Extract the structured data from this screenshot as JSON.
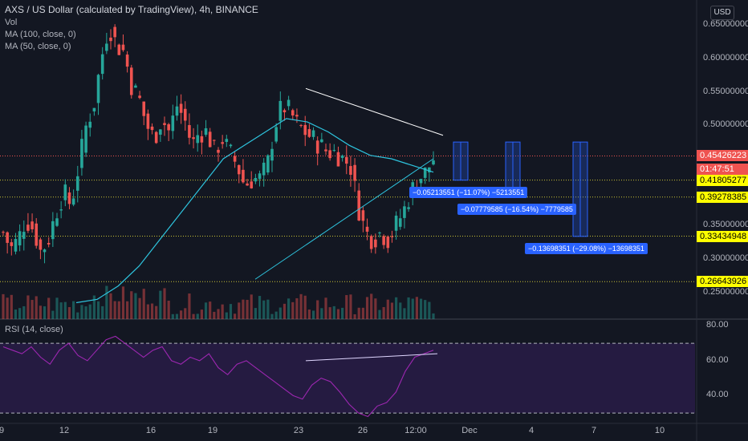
{
  "header": {
    "symbol_title": "AXS / US Dollar (calculated by TradingView), 4h, BINANCE",
    "studies": [
      "Vol",
      "MA (100, close, 0)",
      "MA (50, close, 0)"
    ],
    "currency_button": "USD"
  },
  "rsi_label": "RSI (14, close)",
  "colors": {
    "background": "#131722",
    "up_candle": "#26a69a",
    "down_candle": "#ef5350",
    "ma_line": "#2ec4de",
    "rsi_line": "#9c27b0",
    "rsi_band": "#2b1d4a",
    "measure_box": "#2962ff",
    "level_line": "#c9c234",
    "trendline": "#ffffff"
  },
  "price_axis": {
    "ticks": [
      "0.65000000",
      "0.60000000",
      "0.55000000",
      "0.50000000",
      "0.35000000",
      "0.30000000",
      "0.25000000"
    ]
  },
  "price_tags": [
    {
      "label": "0.45426223",
      "value": 0.45426223,
      "bg": "#ef5350",
      "fg": "#ffffff"
    },
    {
      "label": "01:47:51",
      "value": 0.4343,
      "bg": "#ef5350",
      "fg": "#ffffff"
    },
    {
      "label": "0.41805277",
      "value": 0.41805277,
      "bg": "#ffff00",
      "fg": "#000000"
    },
    {
      "label": "0.39278385",
      "value": 0.39278385,
      "bg": "#ffff00",
      "fg": "#000000"
    },
    {
      "label": "0.33434948",
      "value": 0.33434948,
      "bg": "#ffff00",
      "fg": "#000000"
    },
    {
      "label": "0.26643926",
      "value": 0.26643926,
      "bg": "#ffff00",
      "fg": "#000000"
    }
  ],
  "rsi_axis": {
    "ticks": [
      "80.00",
      "60.00",
      "40.00"
    ]
  },
  "date_axis": {
    "ticks": [
      "9",
      "12",
      "16",
      "19",
      "23",
      "26",
      "12:00",
      "Dec",
      "4",
      "7",
      "10"
    ]
  },
  "measurements": [
    {
      "label": "−0.05213551 (−11.07%) −5213551"
    },
    {
      "label": "−0.07779585 (−16.54%) −7779585"
    },
    {
      "label": "−0.13698351 (−29.08%) −13698351"
    }
  ],
  "chart_data": {
    "type": "candlestick",
    "timeframe": "4h",
    "x": [
      "9",
      "12",
      "16",
      "19",
      "23",
      "26",
      "12:00",
      "Dec",
      "4",
      "7",
      "10"
    ],
    "price_close_trace": [
      0.34,
      0.315,
      0.33,
      0.36,
      0.345,
      0.31,
      0.33,
      0.37,
      0.4,
      0.38,
      0.44,
      0.5,
      0.53,
      0.6,
      0.65,
      0.62,
      0.61,
      0.56,
      0.54,
      0.5,
      0.48,
      0.51,
      0.49,
      0.53,
      0.51,
      0.47,
      0.49,
      0.49,
      0.46,
      0.48,
      0.46,
      0.44,
      0.41,
      0.42,
      0.42,
      0.44,
      0.5,
      0.53,
      0.52,
      0.5,
      0.49,
      0.48,
      0.47,
      0.46,
      0.46,
      0.45,
      0.44,
      0.38,
      0.34,
      0.33,
      0.34,
      0.33,
      0.35,
      0.37,
      0.4,
      0.42,
      0.43,
      0.45
    ],
    "last_price": 0.45426223,
    "horizontal_levels": [
      0.41805277,
      0.39278385,
      0.33434948,
      0.26643926
    ],
    "ma50_trace": [
      0.235,
      0.24,
      0.26,
      0.29,
      0.33,
      0.37,
      0.41,
      0.45,
      0.47,
      0.49,
      0.51,
      0.505,
      0.49,
      0.47,
      0.455,
      0.45,
      0.44,
      0.43
    ],
    "rsi": {
      "period": 14,
      "upper": 70,
      "lower": 30,
      "ticks": [
        80,
        60,
        40
      ]
    },
    "rsi_trace": [
      68,
      66,
      64,
      68,
      62,
      58,
      66,
      70,
      63,
      60,
      66,
      72,
      74,
      70,
      66,
      62,
      66,
      68,
      60,
      58,
      62,
      60,
      64,
      56,
      52,
      58,
      60,
      56,
      52,
      48,
      44,
      40,
      38,
      46,
      50,
      48,
      42,
      35,
      30,
      28,
      34,
      36,
      42,
      54,
      62,
      64,
      66
    ],
    "price_ylim": [
      0.22,
      0.68
    ],
    "rsi_ylim": [
      25,
      82
    ]
  }
}
